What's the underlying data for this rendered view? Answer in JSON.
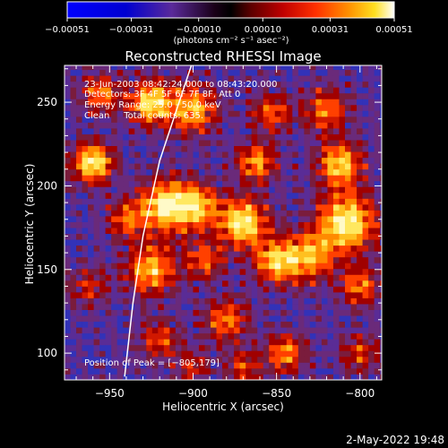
{
  "chart_data": {
    "type": "heatmap",
    "title": "Reconstructed RHESSI Image",
    "xlabel": "Heliocentric X (arcsec)",
    "ylabel": "Heliocentric Y (arcsec)",
    "xlim": [
      -977,
      -787
    ],
    "ylim": [
      84,
      272
    ],
    "xticks": [
      -950,
      -900,
      -850,
      -800
    ],
    "xtick_labels": [
      "−950",
      "−900",
      "−850",
      "−800"
    ],
    "yticks": [
      100,
      150,
      200,
      250
    ],
    "ytick_labels": [
      "100",
      "150",
      "200",
      "250"
    ],
    "colorbar": {
      "ticks": [
        -0.00051,
        -0.00031,
        -0.0001,
        0.0001,
        0.00031,
        0.00051
      ],
      "tick_labels": [
        "−0.00051",
        "−0.00031",
        "−0.00010",
        "0.00010",
        "0.00031",
        "0.00051"
      ],
      "unit_label": "(photons cm⁻² s⁻¹ asec⁻²)",
      "range": [
        -0.00051,
        0.00051
      ]
    },
    "annotations": [
      "23-Jun-2003 08:42:24.000 to 08:43:20.000",
      "Detectors: 3F 4F 5F 6F 7F 8F, Att 0",
      "Energy Range: 25.0 - 50.0 keV",
      "Clean     Total counts: 635."
    ],
    "peak_label": "Position of Peak = [−805,179]",
    "peak_position": [
      -805,
      179
    ],
    "limb_curve": [
      [
        -941,
        86
      ],
      [
        -936,
        130
      ],
      [
        -930,
        170
      ],
      [
        -920,
        215
      ],
      [
        -905,
        260
      ],
      [
        -901,
        272
      ]
    ],
    "hot_spots": [
      {
        "x": -960,
        "y": 214,
        "w": 1.0,
        "r": 8
      },
      {
        "x": -925,
        "y": 250,
        "w": 0.9,
        "r": 9
      },
      {
        "x": -900,
        "y": 246,
        "w": 0.75,
        "r": 10
      },
      {
        "x": -916,
        "y": 188,
        "w": 0.95,
        "r": 11
      },
      {
        "x": -897,
        "y": 188,
        "w": 0.7,
        "r": 9
      },
      {
        "x": -925,
        "y": 150,
        "w": 0.8,
        "r": 10
      },
      {
        "x": -893,
        "y": 156,
        "w": 0.55,
        "r": 8
      },
      {
        "x": -880,
        "y": 120,
        "w": 0.6,
        "r": 9
      },
      {
        "x": -920,
        "y": 108,
        "w": 0.5,
        "r": 8
      },
      {
        "x": -870,
        "y": 178,
        "w": 0.95,
        "r": 10
      },
      {
        "x": -862,
        "y": 214,
        "w": 0.7,
        "r": 8
      },
      {
        "x": -850,
        "y": 155,
        "w": 0.8,
        "r": 9
      },
      {
        "x": -830,
        "y": 158,
        "w": 0.7,
        "r": 10
      },
      {
        "x": -808,
        "y": 178,
        "w": 1.0,
        "r": 12
      },
      {
        "x": -812,
        "y": 213,
        "w": 0.85,
        "r": 9
      },
      {
        "x": -820,
        "y": 245,
        "w": 0.6,
        "r": 9
      },
      {
        "x": -853,
        "y": 244,
        "w": 0.55,
        "r": 8
      },
      {
        "x": -845,
        "y": 100,
        "w": 0.65,
        "r": 8
      },
      {
        "x": -800,
        "y": 140,
        "w": 0.6,
        "r": 8
      },
      {
        "x": -800,
        "y": 100,
        "w": 0.45,
        "r": 8
      },
      {
        "x": -955,
        "y": 255,
        "w": 0.6,
        "r": 8
      },
      {
        "x": -940,
        "y": 180,
        "w": 0.5,
        "r": 8
      },
      {
        "x": -962,
        "y": 140,
        "w": 0.4,
        "r": 8
      },
      {
        "x": -870,
        "y": 92,
        "w": 0.45,
        "r": 7
      },
      {
        "x": -900,
        "y": 92,
        "w": 0.4,
        "r": 7
      }
    ]
  },
  "footer": {
    "date": "2-May-2022 19:48"
  }
}
